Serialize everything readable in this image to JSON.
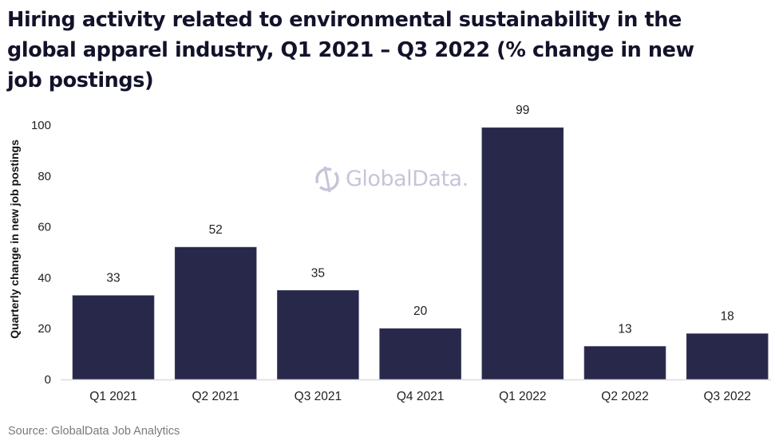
{
  "chart_data": {
    "type": "bar",
    "title": "Hiring activity related to environmental sustainability in the global apparel industry, Q1 2021 – Q3 2022 (% change in new job postings)",
    "xlabel": "",
    "ylabel": "Quarterly change in new job postings",
    "categories": [
      "Q1 2021",
      "Q2 2021",
      "Q3 2021",
      "Q4 2021",
      "Q1 2022",
      "Q2 2022",
      "Q3 2022"
    ],
    "values": [
      33,
      52,
      35,
      20,
      99,
      13,
      18
    ],
    "data_labels": [
      "33",
      "52",
      "35",
      "20",
      "99",
      "13",
      "18"
    ],
    "ylim": [
      0,
      100
    ],
    "yticks": [
      0,
      20,
      40,
      60,
      80,
      100
    ],
    "grid": false,
    "legend": "none",
    "bar_color": "#28284b",
    "baseline_color": "#dddddd"
  },
  "watermark": {
    "text": "GlobalData.",
    "icon": "globaldata-logo-icon",
    "color": "#c9c3d8"
  },
  "source": "Source: GlobalData Job Analytics"
}
